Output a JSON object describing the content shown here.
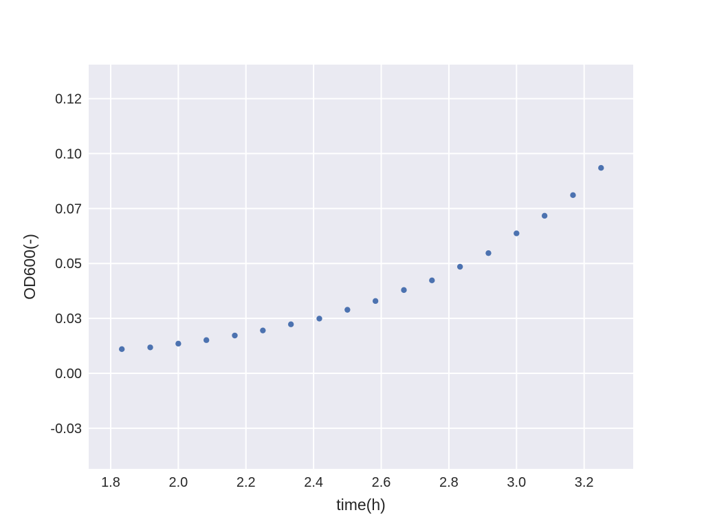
{
  "chart_data": {
    "type": "scatter",
    "title": "",
    "xlabel": "time(h)",
    "ylabel": "OD600(-)",
    "xlim": [
      1.735,
      3.345
    ],
    "ylim": [
      -0.0435,
      0.1405
    ],
    "xticks": [
      1.8,
      2.0,
      2.2,
      2.4,
      2.6,
      2.8,
      3.0,
      3.2
    ],
    "xtick_labels": [
      "1.8",
      "2.0",
      "2.2",
      "2.4",
      "2.6",
      "2.8",
      "3.0",
      "3.2"
    ],
    "yticks": [
      -0.025,
      0.0,
      0.025,
      0.05,
      0.075,
      0.1,
      0.125
    ],
    "ytick_labels": [
      "-0.03",
      "0.00",
      "0.03",
      "0.05",
      "0.07",
      "0.10",
      "0.12"
    ],
    "grid": true,
    "background": "#eaeaf2",
    "grid_color": "#ffffff",
    "marker_color": "#4c72b0",
    "series": [
      {
        "x": [
          1.833,
          1.917,
          2.0,
          2.083,
          2.167,
          2.25,
          2.333,
          2.417,
          2.5,
          2.583,
          2.667,
          2.75,
          2.833,
          2.917,
          3.0,
          3.083,
          3.167,
          3.25
        ],
        "y": [
          0.011,
          0.0118,
          0.0135,
          0.0151,
          0.0172,
          0.0195,
          0.0223,
          0.0249,
          0.0289,
          0.0329,
          0.0379,
          0.0423,
          0.0485,
          0.0547,
          0.0637,
          0.0717,
          0.0811,
          0.0935
        ]
      }
    ]
  }
}
